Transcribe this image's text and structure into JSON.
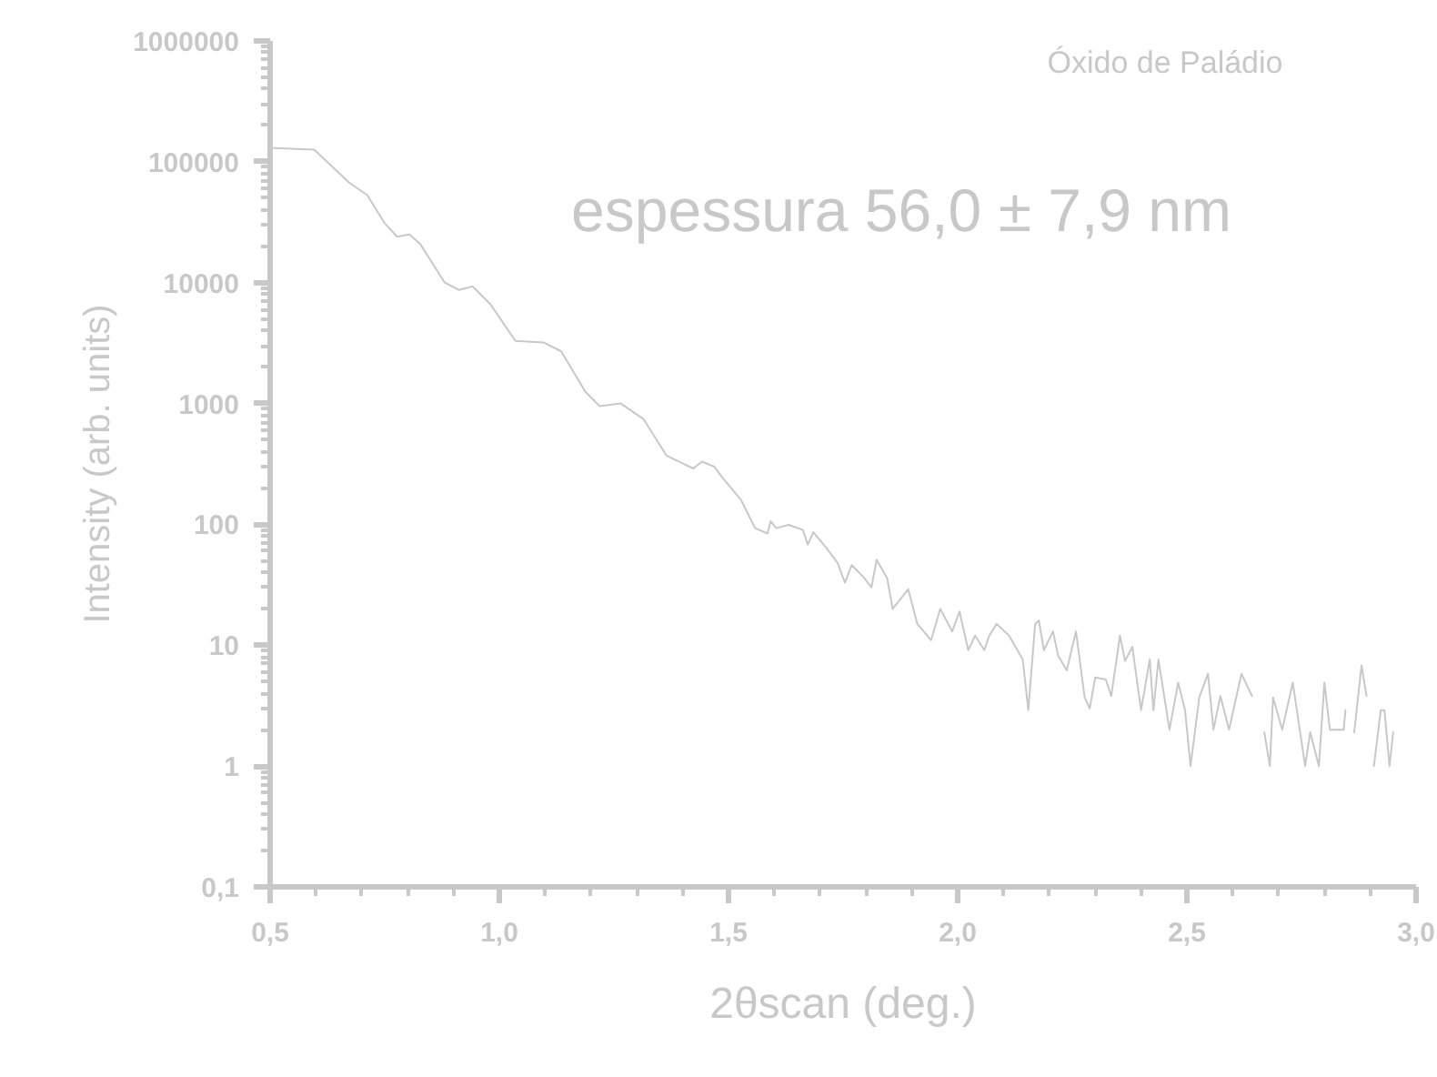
{
  "chart_data": {
    "type": "line",
    "xlabel": "2θscan (deg.)",
    "ylabel": "Intensity (arb. units)",
    "log": "y",
    "grid": false,
    "annotations": [
      "Óxido de Paládio",
      "espessura 56,0 ± 7,9 nm"
    ],
    "xlim": [
      0.5,
      3.0
    ],
    "xticks": [
      {
        "value": 0.5,
        "label": "0,5"
      },
      {
        "value": 1.0,
        "label": "1,0"
      },
      {
        "value": 1.5,
        "label": "1,5"
      },
      {
        "value": 2.0,
        "label": "2,0"
      },
      {
        "value": 2.5,
        "label": "2,5"
      },
      {
        "value": 3.0,
        "label": "3,0"
      }
    ],
    "ylim": [
      0.1,
      1000000
    ],
    "yticks": [
      {
        "value": 0.1,
        "label": "0,1"
      },
      1,
      10,
      100,
      1000,
      10000,
      100000,
      1000000
    ],
    "series": [
      {
        "color": "#c8c8c8",
        "x": [
          0.508,
          0.596,
          0.673,
          0.712,
          0.75,
          0.777,
          0.804,
          0.827,
          0.881,
          0.912,
          0.942,
          0.981,
          1.035,
          1.096,
          1.135,
          1.188,
          1.219,
          1.265,
          1.315,
          1.365,
          1.423,
          1.442,
          1.469,
          1.488,
          1.527,
          1.558,
          1.585,
          1.592,
          1.604,
          1.631,
          1.662,
          1.673,
          1.685,
          1.712,
          1.738,
          1.754,
          1.769,
          1.796,
          1.812,
          1.823,
          1.846,
          1.858,
          1.892,
          1.912,
          1.942,
          1.962,
          1.988,
          2.004,
          2.023,
          2.038,
          2.058,
          2.069,
          2.085,
          2.112,
          2.142,
          2.154,
          2.169,
          2.177,
          2.188,
          2.208,
          2.219,
          2.238,
          2.258,
          2.277,
          2.288,
          2.3,
          2.323,
          2.335,
          2.354,
          2.365,
          2.381,
          2.4,
          2.419,
          2.427,
          2.438,
          2.462,
          2.481,
          2.496,
          2.508,
          2.527,
          2.546,
          2.558,
          2.573,
          2.592,
          2.619,
          2.642,
          2.655,
          2.669,
          2.681,
          2.688,
          2.708,
          2.731,
          2.758,
          2.769,
          2.788,
          2.8,
          2.812,
          2.842,
          2.846,
          2.855,
          2.865,
          2.881,
          2.892,
          2.9,
          2.908,
          2.923,
          2.931,
          2.942,
          2.95
        ],
        "values": [
          130000,
          126000,
          67000,
          53000,
          31000,
          24000,
          25000,
          21000,
          10000,
          8700,
          9300,
          6600,
          3300,
          3200,
          2700,
          1250,
          950,
          1000,
          740,
          370,
          290,
          330,
          300,
          240,
          160,
          93,
          84,
          106,
          93,
          99,
          90,
          68,
          86,
          65,
          48,
          33,
          46,
          36,
          30,
          51,
          36,
          20,
          29,
          15,
          11,
          20,
          13,
          19,
          9.1,
          12,
          9.1,
          12,
          15,
          12,
          7.6,
          2.9,
          15,
          16,
          9.1,
          13,
          8.2,
          6.2,
          13,
          3.7,
          3.0,
          5.4,
          5.2,
          3.8,
          12,
          7.4,
          9.7,
          2.9,
          7.6,
          2.9,
          7.6,
          2.0,
          4.9,
          2.9,
          1.0,
          3.7,
          5.8,
          2.0,
          3.8,
          2.0,
          5.8,
          3.8,
          null,
          1.9,
          1.0,
          3.7,
          2.0,
          4.9,
          1.0,
          1.9,
          1.0,
          4.9,
          2.0,
          2.0,
          2.9,
          null,
          1.9,
          6.8,
          3.8,
          null,
          1.0,
          2.9,
          2.9,
          1.0,
          1.9
        ]
      }
    ]
  }
}
